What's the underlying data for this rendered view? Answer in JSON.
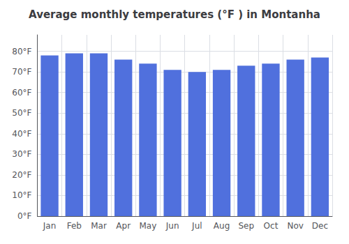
{
  "chart_data": {
    "type": "bar",
    "title": "Average monthly temperatures (°F ) in Montanha",
    "categories": [
      "Jan",
      "Feb",
      "Mar",
      "Apr",
      "May",
      "Jun",
      "Jul",
      "Aug",
      "Sep",
      "Oct",
      "Nov",
      "Dec"
    ],
    "values": [
      78,
      79,
      79,
      76,
      74,
      71,
      70,
      71,
      73,
      74,
      76,
      77
    ],
    "ylim": [
      0,
      88
    ],
    "yticks": [
      {
        "value": 0,
        "label": "0°F"
      },
      {
        "value": 10,
        "label": "10°F"
      },
      {
        "value": 20,
        "label": "20°F"
      },
      {
        "value": 30,
        "label": "30°F"
      },
      {
        "value": 40,
        "label": "40°F"
      },
      {
        "value": 50,
        "label": "50°F"
      },
      {
        "value": 60,
        "label": "60°F"
      },
      {
        "value": 70,
        "label": "70°F"
      },
      {
        "value": 80,
        "label": "80°F"
      }
    ],
    "grid": true
  }
}
